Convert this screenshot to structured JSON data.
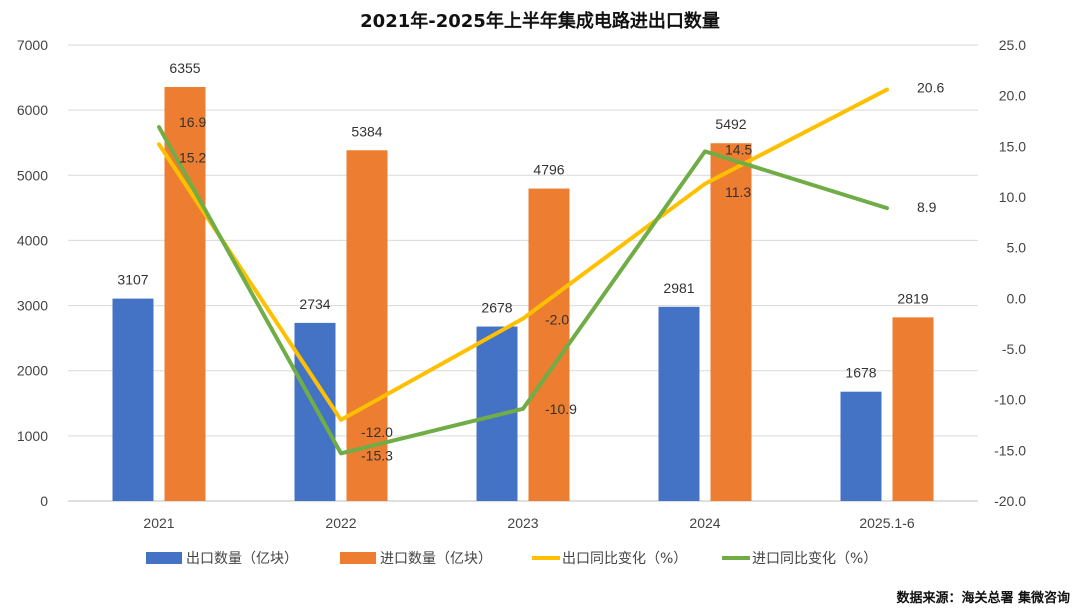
{
  "chart_data": {
    "type": "bar",
    "title": "2021年-2025年上半年集成电路进出口数量",
    "categories": [
      "2021",
      "2022",
      "2023",
      "2024",
      "2025.1-6"
    ],
    "bar_series": [
      {
        "name": "出口数量（亿块）",
        "values": [
          3107,
          2734,
          2678,
          2981,
          1678
        ],
        "color": "#4472C4",
        "labels": [
          "3107",
          "2734",
          "2678",
          "2981",
          "1678"
        ]
      },
      {
        "name": "进口数量（亿块）",
        "values": [
          6355,
          5384,
          4796,
          5492,
          2819
        ],
        "color": "#ED7D31",
        "labels": [
          "6355",
          "5384",
          "4796",
          "5492",
          "2819"
        ]
      }
    ],
    "line_series": [
      {
        "name": "出口同比变化（%）",
        "values": [
          15.2,
          -12.0,
          -2.0,
          11.3,
          20.6
        ],
        "color": "#FFC000",
        "labels": [
          "15.2",
          "-12.0",
          "-2.0",
          "11.3",
          "20.6"
        ]
      },
      {
        "name": "进口同比变化（%）",
        "values": [
          16.9,
          -15.3,
          -10.9,
          14.5,
          8.9
        ],
        "color": "#70AD47",
        "labels": [
          "16.9",
          "-15.3",
          "-10.9",
          "14.5",
          "8.9"
        ]
      }
    ],
    "ylim_left": [
      0,
      7000
    ],
    "yticks_left": [
      "0",
      "1000",
      "2000",
      "3000",
      "4000",
      "5000",
      "6000",
      "7000"
    ],
    "ylim_right": [
      -20,
      25
    ],
    "yticks_right": [
      "-20.0",
      "-15.0",
      "-10.0",
      "-5.0",
      "0.0",
      "5.0",
      "10.0",
      "15.0",
      "20.0",
      "25.0"
    ],
    "grid": true,
    "legend_position": "bottom"
  },
  "source_note": "数据来源：海关总署   集微咨询"
}
